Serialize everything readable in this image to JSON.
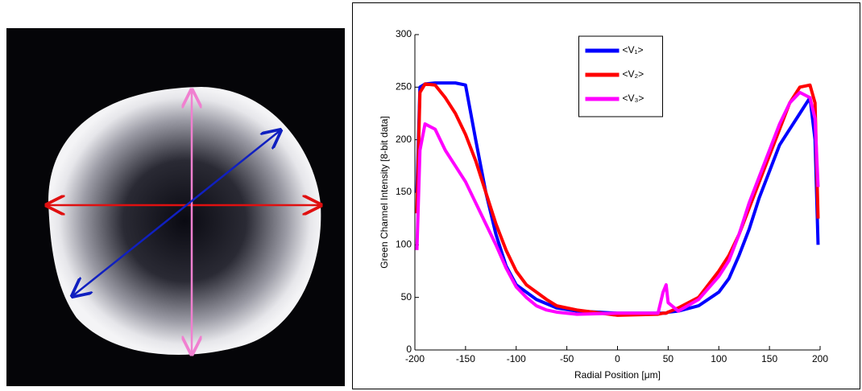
{
  "chart_data": {
    "type": "line",
    "xlabel": "Radial Position [μm]",
    "ylabel": "Green Channel Intensity [8-bit data]",
    "x": [
      -198,
      -195,
      -190,
      -180,
      -170,
      -160,
      -150,
      -140,
      -130,
      -120,
      -110,
      -100,
      -90,
      -80,
      -70,
      -60,
      -40,
      0,
      40,
      45,
      48,
      50,
      60,
      80,
      100,
      110,
      120,
      130,
      140,
      150,
      160,
      170,
      180,
      190,
      195,
      198
    ],
    "series": [
      {
        "name": "<V₁>",
        "color": "#0000ff",
        "values": [
          150,
          250,
          253,
          254,
          254,
          254,
          252,
          200,
          150,
          110,
          80,
          62,
          55,
          48,
          44,
          40,
          37,
          35,
          35,
          35,
          35,
          36,
          37,
          42,
          55,
          68,
          90,
          115,
          145,
          170,
          195,
          210,
          225,
          240,
          200,
          100
        ]
      },
      {
        "name": "<V₂>",
        "color": "#ff0000",
        "values": [
          130,
          245,
          253,
          252,
          240,
          225,
          205,
          180,
          150,
          120,
          95,
          75,
          62,
          55,
          48,
          42,
          38,
          33,
          34,
          35,
          35,
          36,
          40,
          50,
          75,
          90,
          110,
          135,
          160,
          185,
          210,
          235,
          250,
          252,
          235,
          125
        ]
      },
      {
        "name": "<V₃>",
        "color": "#ff00ff",
        "values": [
          95,
          190,
          215,
          210,
          190,
          175,
          160,
          140,
          120,
          100,
          78,
          60,
          50,
          42,
          38,
          36,
          34,
          35,
          35,
          55,
          62,
          45,
          37,
          48,
          70,
          85,
          110,
          140,
          165,
          190,
          215,
          235,
          245,
          240,
          220,
          155
        ]
      }
    ],
    "xlim": [
      -200,
      200
    ],
    "xticks": [
      -200,
      -150,
      -100,
      -50,
      0,
      50,
      100,
      150,
      200
    ],
    "ylim": [
      0,
      300
    ],
    "yticks": [
      0,
      50,
      100,
      150,
      200,
      250,
      300
    ],
    "legend": "upper center"
  }
}
